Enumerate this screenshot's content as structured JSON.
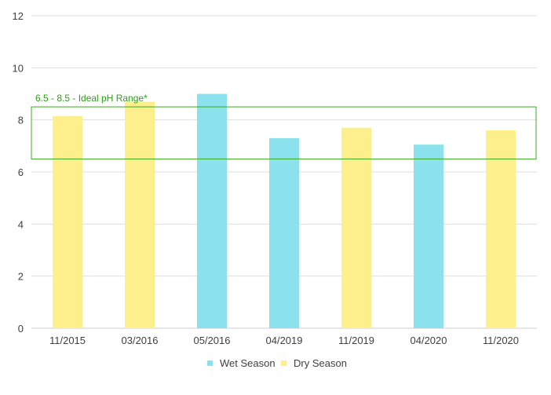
{
  "chart_data": {
    "type": "bar",
    "title": "",
    "xlabel": "",
    "ylabel": "",
    "categories": [
      "11/2015",
      "03/2016",
      "05/2016",
      "04/2019",
      "11/2019",
      "04/2020",
      "11/2020"
    ],
    "values": [
      8.15,
      8.7,
      9.0,
      7.3,
      7.7,
      7.05,
      7.6
    ],
    "seasons": [
      "Dry Season",
      "Dry Season",
      "Wet Season",
      "Wet Season",
      "Dry Season",
      "Wet Season",
      "Dry Season"
    ],
    "series": [
      {
        "name": "Wet Season",
        "color": "#8be2ec"
      },
      {
        "name": "Dry Season",
        "color": "#fdf08c"
      }
    ],
    "ylim": [
      0,
      12
    ],
    "yticks": [
      0,
      2,
      4,
      6,
      8,
      10,
      12
    ],
    "grid": true,
    "legend": "bottom-center",
    "annotation": {
      "text": "6.5 - 8.5 - Ideal pH Range*",
      "range": [
        6.5,
        8.5
      ],
      "color": "#3aaa22"
    }
  }
}
